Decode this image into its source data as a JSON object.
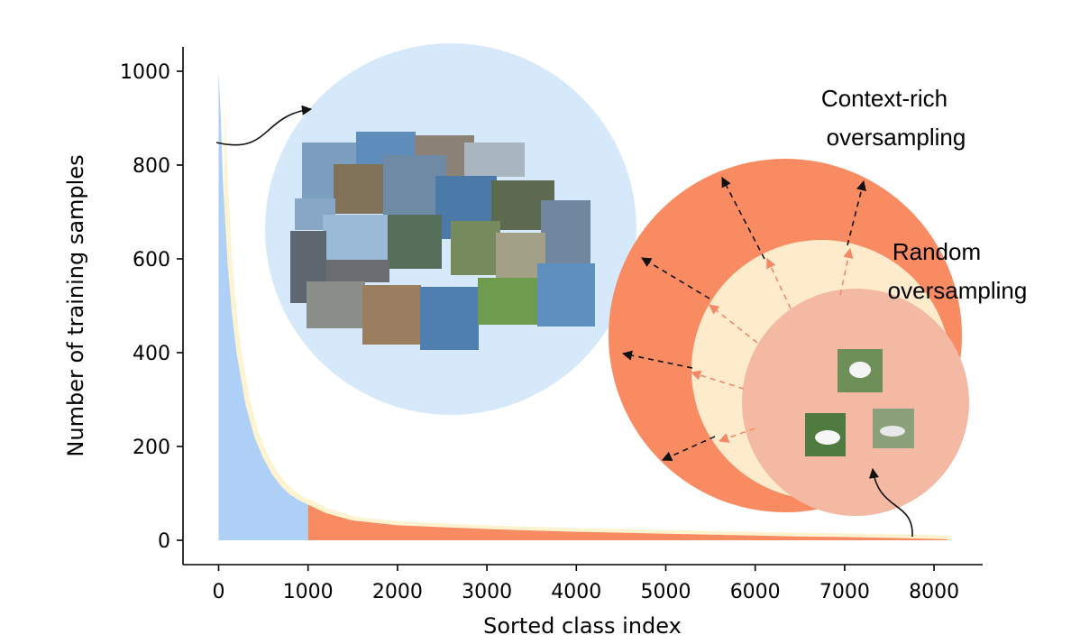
{
  "chart_data": {
    "type": "area",
    "xlabel": "Sorted class index",
    "ylabel": "Number of training samples",
    "xlim": [
      -350,
      8500
    ],
    "ylim": [
      -50,
      1050
    ],
    "xticks": [
      0,
      1000,
      2000,
      3000,
      4000,
      5000,
      6000,
      7000,
      8000
    ],
    "yticks": [
      0,
      200,
      400,
      600,
      800,
      1000
    ],
    "grid": false,
    "head_tail_split": 1000,
    "head_color": "#aed0f7",
    "tail_color": "#f98b63",
    "x": [
      0,
      20,
      50,
      100,
      150,
      200,
      300,
      400,
      500,
      600,
      700,
      800,
      900,
      1000,
      1200,
      1500,
      2000,
      2500,
      3000,
      3500,
      4000,
      4500,
      5000,
      5500,
      6000,
      6500,
      7000,
      7500,
      8000,
      8142
    ],
    "values": [
      1000,
      920,
      760,
      590,
      480,
      400,
      290,
      220,
      175,
      140,
      115,
      97,
      85,
      76,
      58,
      42,
      32,
      28,
      24,
      21,
      18,
      16,
      14,
      12,
      10,
      8,
      7,
      5,
      3,
      2
    ]
  },
  "callouts": {
    "context_rich": [
      "Context-rich",
      "oversampling"
    ],
    "random": [
      "Random",
      "oversampling"
    ]
  },
  "colors": {
    "head_circle": "#d6e9fb",
    "outer_circle": "#f98b63",
    "middle_circle": "#fdebcc",
    "inner_circle": "#f4b9a3",
    "outer_arrow": "#111111",
    "inner_arrow": "#f4896a"
  }
}
